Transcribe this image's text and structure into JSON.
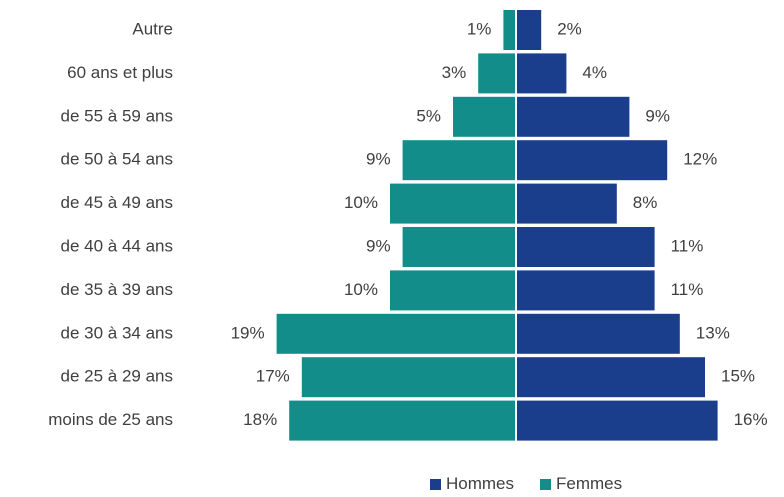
{
  "chart_data": {
    "type": "bar",
    "orientation": "horizontal-diverging",
    "categories": [
      "Autre",
      "60 ans et plus",
      "de 55 à 59 ans",
      "de 50 à 54 ans",
      "de 45 à 49 ans",
      "de 40 à 44 ans",
      "de 35 à 39 ans",
      "de 30 à 34 ans",
      "de 25 à 29 ans",
      "moins de 25 ans"
    ],
    "series": [
      {
        "name": "Femmes",
        "side": "left",
        "color": "#138d8a",
        "values": [
          1,
          3,
          5,
          9,
          10,
          9,
          10,
          19,
          17,
          18
        ],
        "labels": [
          "1%",
          "3%",
          "5%",
          "9%",
          "10%",
          "9%",
          "10%",
          "19%",
          "17%",
          "18%"
        ]
      },
      {
        "name": "Hommes",
        "side": "right",
        "color": "#1a3e8c",
        "values": [
          2,
          4,
          9,
          12,
          8,
          11,
          11,
          13,
          15,
          16
        ],
        "labels": [
          "2%",
          "4%",
          "9%",
          "12%",
          "8%",
          "11%",
          "11%",
          "13%",
          "15%",
          "16%"
        ]
      }
    ],
    "unit": "%",
    "legend": {
      "position": "bottom-right",
      "order": [
        "Hommes",
        "Femmes"
      ]
    },
    "grid": false
  }
}
